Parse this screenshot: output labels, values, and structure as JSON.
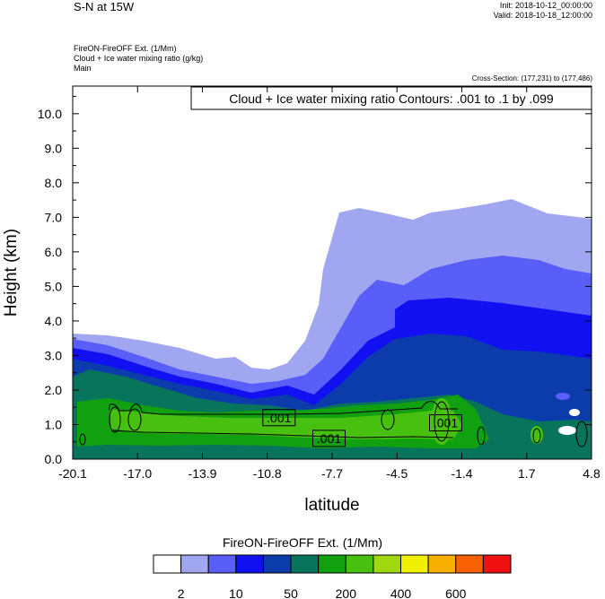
{
  "header": {
    "title": "S-N at 15W",
    "init": "Init: 2018-10-12_00:00:00",
    "valid": "Valid: 2018-10-18_12:00:00",
    "fill_field": "FireON-FireOFF Ext.   (1/Mm)",
    "contour_field": "Cloud + Ice water mixing ratio   (g/kg)",
    "domain": "Main",
    "cross_section": "Cross-Section: (177,231) to (177,486)"
  },
  "chart_data": {
    "type": "contour",
    "contour_info": "Cloud + Ice water mixing ratio Contours: .001 to .1 by .099",
    "xlabel": "latitude",
    "ylabel": "Height (km)",
    "xlim": [
      -20.1,
      4.8
    ],
    "ylim": [
      0,
      10.8
    ],
    "x_ticks": [
      "-20.1",
      "-17.0",
      "-13.9",
      "-10.8",
      "-7.7",
      "-4.5",
      "-1.4",
      "1.7",
      "4.8"
    ],
    "y_ticks": [
      "0.0",
      "1.0",
      "2.0",
      "3.0",
      "4.0",
      "5.0",
      "6.0",
      "7.0",
      "8.0",
      "9.0",
      "10.0"
    ],
    "contour_labels": [
      {
        "text": ".001",
        "x": -10.2,
        "y": 1.2
      },
      {
        "text": ".001",
        "x": -7.8,
        "y": 0.6
      },
      {
        "text": ".001",
        "x": -2.2,
        "y": 1.05
      }
    ],
    "colorbar": {
      "title": "FireON-FireOFF Ext.  (1/Mm)",
      "labels": [
        "2",
        "10",
        "50",
        "200",
        "400",
        "600"
      ],
      "colors": [
        "#ffffff",
        "#a0a6f0",
        "#5a5ef8",
        "#1010f0",
        "#0c3cac",
        "#08745c",
        "#10a010",
        "#48c010",
        "#a0d810",
        "#f0f000",
        "#f8b000",
        "#f86000",
        "#f01010"
      ]
    }
  }
}
